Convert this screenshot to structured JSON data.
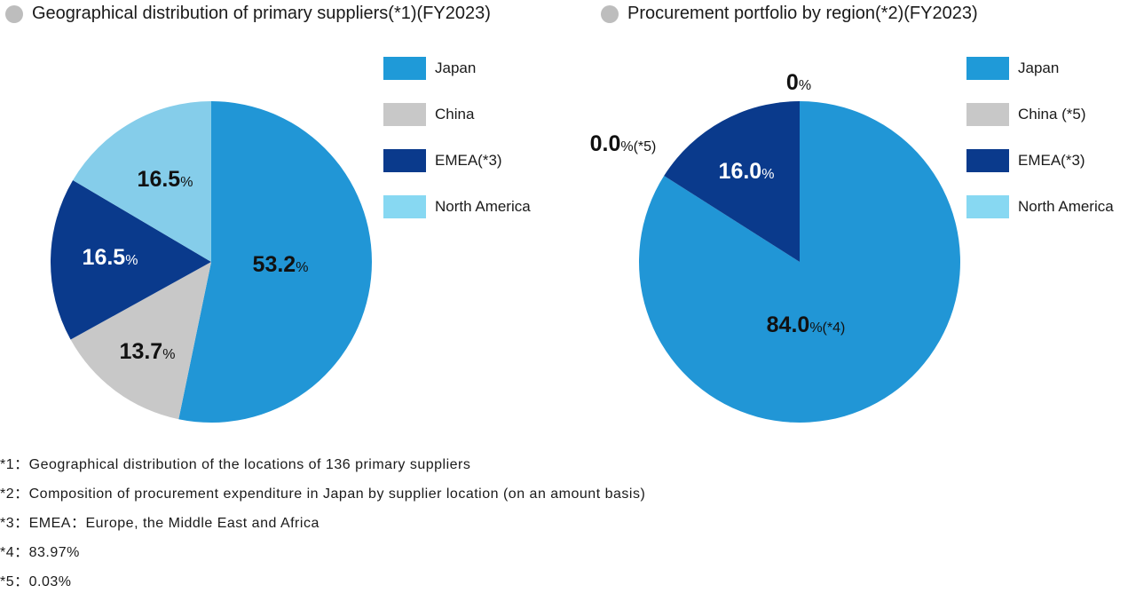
{
  "colors": {
    "japan": "#2196d6",
    "china": "#c8c8c8",
    "emea": "#0a3a8c",
    "north_america": "#85cdea",
    "title_dot": "#bdbdbd"
  },
  "legend1": {
    "items": [
      {
        "label": "Japan",
        "color": "#1f9ad8"
      },
      {
        "label": "China",
        "color": "#c8c8c8"
      },
      {
        "label": "EMEA(*3)",
        "color": "#0a3a8c"
      },
      {
        "label": "North America",
        "color": "#87d8f2"
      }
    ]
  },
  "legend2": {
    "items": [
      {
        "label": "Japan",
        "color": "#1f9ad8"
      },
      {
        "label": "China (*5)",
        "color": "#c8c8c8"
      },
      {
        "label": "EMEA(*3)",
        "color": "#0a3a8c"
      },
      {
        "label": "North America",
        "color": "#87d8f2"
      }
    ]
  },
  "chart_data": [
    {
      "type": "pie",
      "title": "Geographical distribution of primary suppliers(*1)(FY2023)",
      "categories": [
        "Japan",
        "China",
        "EMEA(*3)",
        "North America"
      ],
      "values": [
        53.2,
        13.7,
        16.5,
        16.5
      ],
      "labels": [
        {
          "num": "53.2",
          "unit": "%",
          "suffix": ""
        },
        {
          "num": "13.7",
          "unit": "%",
          "suffix": ""
        },
        {
          "num": "16.5",
          "unit": "%",
          "suffix": ""
        },
        {
          "num": "16.5",
          "unit": "%",
          "suffix": ""
        }
      ],
      "colors": [
        "#2196d6",
        "#c8c8c8",
        "#0a3a8c",
        "#85cdea"
      ],
      "legend_position": "right"
    },
    {
      "type": "pie",
      "title": "Procurement portfolio by region(*2)(FY2023)",
      "categories": [
        "Japan",
        "China (*5)",
        "EMEA(*3)",
        "North America"
      ],
      "values": [
        84.0,
        0.0,
        16.0,
        0
      ],
      "labels": [
        {
          "num": "84.0",
          "unit": "%",
          "suffix": "(*4)"
        },
        {
          "num": "0.0",
          "unit": "%",
          "suffix": "(*5)"
        },
        {
          "num": "16.0",
          "unit": "%",
          "suffix": ""
        },
        {
          "num": "0",
          "unit": "%",
          "suffix": ""
        }
      ],
      "colors": [
        "#2196d6",
        "#c8c8c8",
        "#0a3a8c",
        "#85cdea"
      ],
      "legend_position": "right"
    }
  ],
  "footnotes": [
    "*1：Geographical distribution of the locations of 136 primary suppliers",
    "*2：Composition of procurement expenditure in Japan by supplier location (on an amount basis)",
    "*3：EMEA：Europe, the Middle East and Africa",
    "*4：83.97%",
    "*5：0.03%"
  ]
}
